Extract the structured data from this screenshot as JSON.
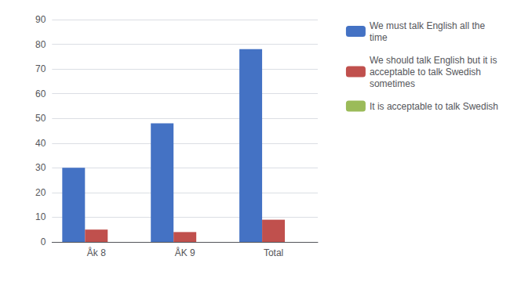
{
  "chart_data": {
    "type": "bar",
    "categories": [
      "Åk 8",
      "ÅK 9",
      "Total"
    ],
    "series": [
      {
        "name": "We must talk English all the\ntime",
        "color": "#4472C4",
        "values": [
          30,
          48,
          78
        ]
      },
      {
        "name": "We should talk English but it is\nacceptable to talk Swedish\nsometimes",
        "color": "#C0504D",
        "values": [
          5,
          4,
          9
        ]
      },
      {
        "name": "It is acceptable to talk Swedish",
        "color": "#9BBB59",
        "values": [
          0,
          0,
          0
        ]
      }
    ],
    "ylim": [
      0,
      90
    ],
    "yticks": [
      0,
      10,
      20,
      30,
      40,
      50,
      60,
      70,
      80,
      90
    ],
    "grid": true,
    "legend": "upper right"
  }
}
